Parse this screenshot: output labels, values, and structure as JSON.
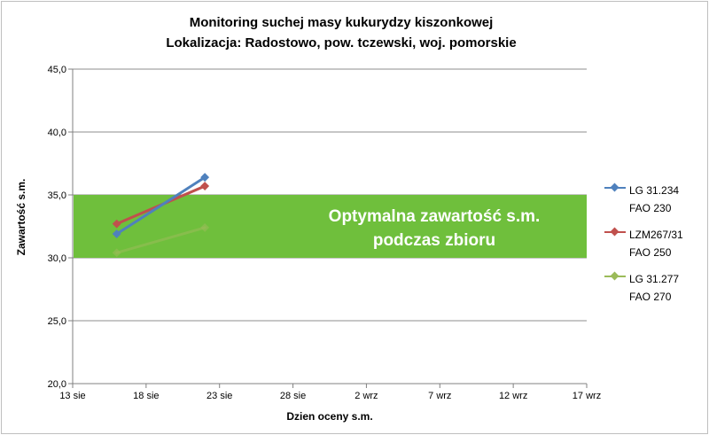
{
  "chart_data": {
    "type": "line",
    "title_line1": "Monitoring suchej masy kukurydzy kiszonkowej",
    "title_line2": "Lokalizacja: Radostowo, pow. tczewski, woj. pomorskie",
    "xlabel": "Dzien oceny s.m.",
    "ylabel": "Zawartość s.m.",
    "x_tick_labels": [
      "13 sie",
      "18 sie",
      "23 sie",
      "28 sie",
      "2 wrz",
      "7 wrz",
      "12 wrz",
      "17 wrz"
    ],
    "x_ticks": [
      "2023-08-13",
      "2023-08-18",
      "2023-08-23",
      "2023-08-28",
      "2023-09-02",
      "2023-09-07",
      "2023-09-12",
      "2023-09-17"
    ],
    "xlim": [
      "2023-08-13",
      "2023-09-17"
    ],
    "y_tick_labels": [
      "20,0",
      "25,0",
      "30,0",
      "35,0",
      "40,0",
      "45,0"
    ],
    "ylim": [
      20,
      45
    ],
    "y_ticks": [
      20,
      25,
      30,
      35,
      40,
      45
    ],
    "grid": "horizontal",
    "legend_position": "right",
    "band": {
      "y0": 30,
      "y1": 35,
      "label_line1": "Optymalna zawartość s.m.",
      "label_line2": "podczas zbioru",
      "color": "#6fbf3c"
    },
    "series": [
      {
        "name": "LG 31.234\nFAO 230",
        "color": "#4f81bd",
        "x": [
          "2023-08-16",
          "2023-08-22"
        ],
        "values": [
          31.9,
          36.4
        ]
      },
      {
        "name": "LZM267/31\nFAO 250",
        "color": "#c0504d",
        "x": [
          "2023-08-16",
          "2023-08-22"
        ],
        "values": [
          32.7,
          35.7
        ]
      },
      {
        "name": "LG 31.277\nFAO 270",
        "color": "#9bbb59",
        "x": [
          "2023-08-16",
          "2023-08-22"
        ],
        "values": [
          30.4,
          32.4
        ]
      }
    ]
  }
}
